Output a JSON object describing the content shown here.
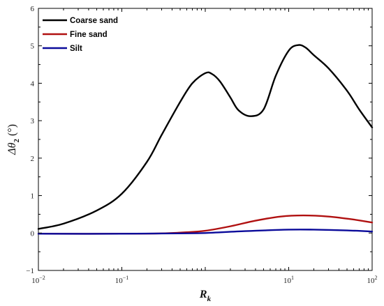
{
  "chart_data": {
    "type": "line",
    "title": "",
    "xscale": "log",
    "xlim": [
      0.01,
      100
    ],
    "ylim": [
      -1,
      6
    ],
    "yticks": [
      "−1",
      "0",
      "1",
      "2",
      "3",
      "4",
      "5",
      "6"
    ],
    "xticks": [
      {
        "base": "10",
        "exp": "−2"
      },
      {
        "base": "10",
        "exp": "−1"
      },
      {
        "base": "10",
        "exp": "1"
      },
      {
        "base": "10",
        "exp": "2"
      }
    ],
    "xlabel": {
      "main": "R",
      "sub": "k"
    },
    "ylabel": {
      "main": "Δθ",
      "sub": "2",
      "suffix": " (°)"
    },
    "legend_position": "top-left",
    "grid": false,
    "series": [
      {
        "name": "Coarse sand",
        "color": "#000000",
        "points": [
          [
            0.01,
            0.11
          ],
          [
            0.02,
            0.25
          ],
          [
            0.05,
            0.6
          ],
          [
            0.1,
            1.05
          ],
          [
            0.2,
            1.9
          ],
          [
            0.3,
            2.62
          ],
          [
            0.5,
            3.5
          ],
          [
            0.7,
            4.0
          ],
          [
            1.0,
            4.27
          ],
          [
            1.2,
            4.25
          ],
          [
            1.5,
            4.05
          ],
          [
            2.0,
            3.62
          ],
          [
            2.5,
            3.28
          ],
          [
            3.5,
            3.12
          ],
          [
            5.0,
            3.3
          ],
          [
            7.0,
            4.2
          ],
          [
            10.0,
            4.87
          ],
          [
            13.0,
            5.02
          ],
          [
            16.0,
            4.95
          ],
          [
            20.0,
            4.75
          ],
          [
            30.0,
            4.4
          ],
          [
            50.0,
            3.8
          ],
          [
            70.0,
            3.3
          ],
          [
            100.0,
            2.82
          ]
        ]
      },
      {
        "name": "Fine sand",
        "color": "#b01010",
        "points": [
          [
            0.01,
            -0.02
          ],
          [
            0.1,
            -0.02
          ],
          [
            0.3,
            -0.01
          ],
          [
            0.6,
            0.02
          ],
          [
            1.0,
            0.06
          ],
          [
            2.0,
            0.18
          ],
          [
            4.0,
            0.33
          ],
          [
            8.0,
            0.44
          ],
          [
            15.0,
            0.47
          ],
          [
            30.0,
            0.44
          ],
          [
            60.0,
            0.36
          ],
          [
            100.0,
            0.28
          ]
        ]
      },
      {
        "name": "Silt",
        "color": "#0a0a9a",
        "points": [
          [
            0.01,
            -0.02
          ],
          [
            0.1,
            -0.02
          ],
          [
            0.5,
            -0.01
          ],
          [
            1.0,
            0.0
          ],
          [
            3.0,
            0.05
          ],
          [
            10.0,
            0.09
          ],
          [
            20.0,
            0.09
          ],
          [
            50.0,
            0.07
          ],
          [
            100.0,
            0.04
          ]
        ]
      }
    ]
  }
}
